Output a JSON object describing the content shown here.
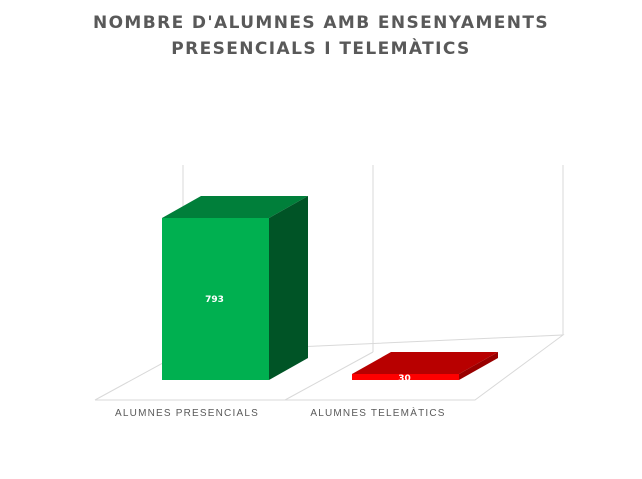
{
  "chart_data": {
    "type": "bar",
    "title_lines": [
      "NOMBRE D'ALUMNES AMB ENSENYAMENTS",
      "PRESENCIALS I TELEMÀTICS"
    ],
    "categories": [
      "ALUMNES PRESENCIALS",
      "ALUMNES TELEMÀTICS"
    ],
    "values": [
      793,
      30
    ],
    "data_labels": [
      "793",
      "30"
    ],
    "colors": [
      "#00B050",
      "#FF0000"
    ],
    "ylim": [
      0,
      900
    ],
    "grid": false,
    "legend": "none",
    "style": "3d-column"
  }
}
